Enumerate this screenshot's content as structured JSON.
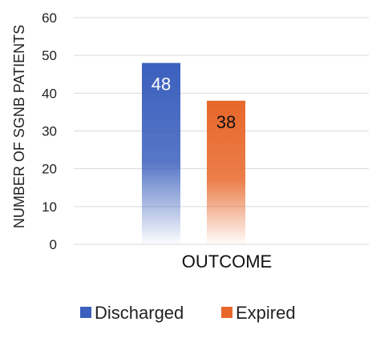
{
  "chart_data": {
    "type": "bar",
    "title": "",
    "xlabel": "OUTCOME",
    "ylabel": "NUMBER OF SGNB PATIENTS",
    "ylim": [
      0,
      60
    ],
    "yticks": [
      "0",
      "10",
      "20",
      "30",
      "40",
      "50",
      "60"
    ],
    "grid": true,
    "legend_position": "bottom",
    "categories": [
      "OUTCOME"
    ],
    "series": [
      {
        "name": "Discharged",
        "values": [
          48
        ],
        "label": "48",
        "color": "#3a5fbd",
        "label_color": "#ffffff"
      },
      {
        "name": "Expired",
        "values": [
          38
        ],
        "label": "38",
        "color": "#e8672a",
        "label_color": "#111111"
      }
    ]
  }
}
